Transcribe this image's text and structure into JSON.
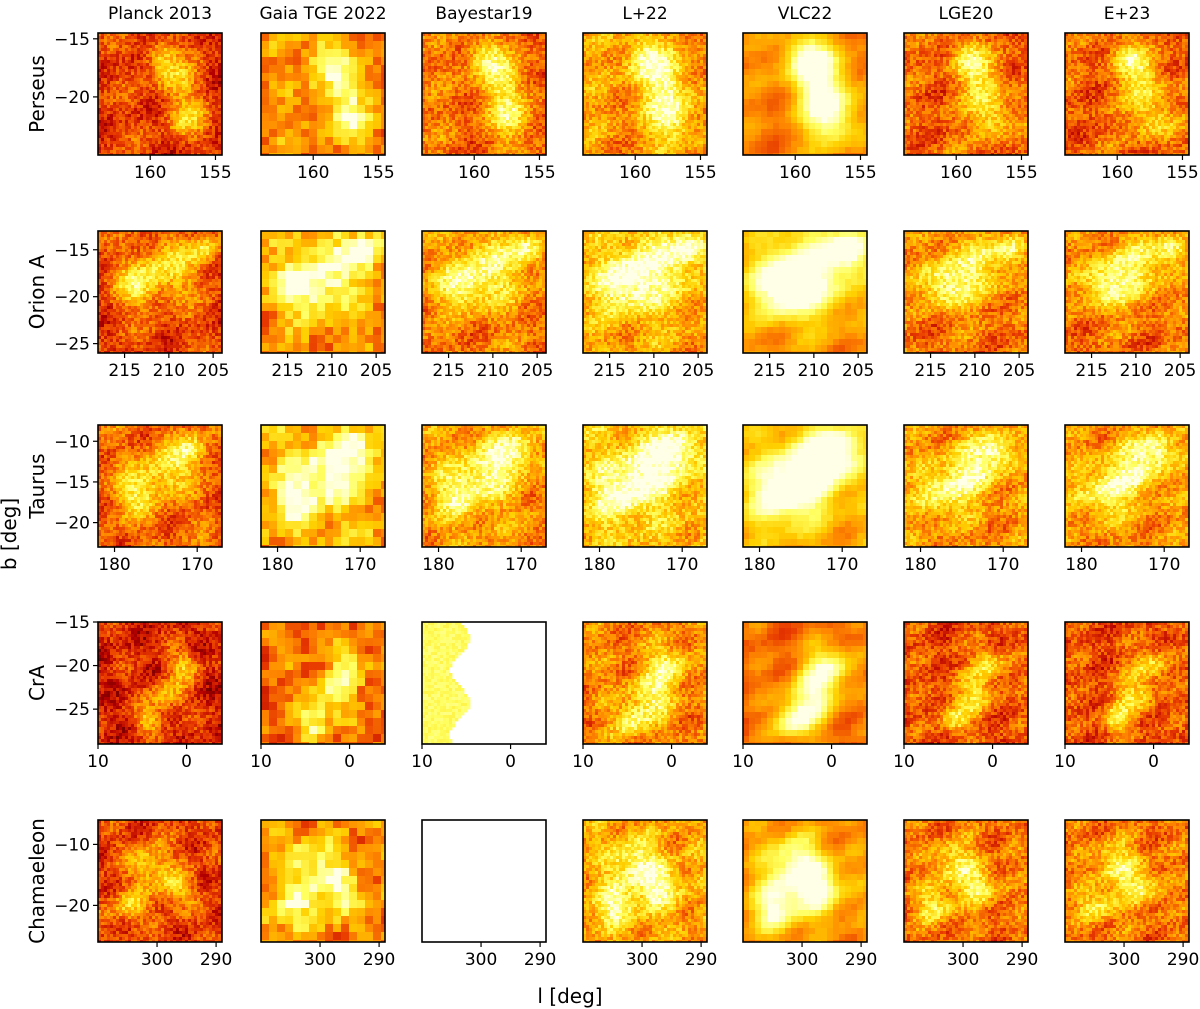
{
  "figure": {
    "xlabel": "l [deg]",
    "ylabel": "b [deg]",
    "colormap": [
      "#000000",
      "#5a0000",
      "#b40000",
      "#e83a00",
      "#ff8a00",
      "#ffd000",
      "#ffff60",
      "#ffffe8"
    ]
  },
  "chart_data": {
    "type": "heatmap",
    "columns": [
      "Planck 2013",
      "Gaia TGE 2022",
      "Bayestar19",
      "L+22",
      "VLC22",
      "LGE20",
      "E+23"
    ],
    "rows": [
      {
        "name": "Perseus",
        "xlim": [
          164,
          154.5
        ],
        "xticks": [
          160,
          155
        ],
        "xtick_labels": [
          "160",
          "155"
        ],
        "ylim": [
          -25,
          -14.5
        ],
        "yticks": [
          -15,
          -20
        ],
        "ytick_labels": [
          "−15",
          "−20"
        ]
      },
      {
        "name": "Orion A",
        "xlim": [
          218,
          204
        ],
        "xticks": [
          215,
          210,
          205
        ],
        "xtick_labels": [
          "215",
          "210",
          "205"
        ],
        "ylim": [
          -26,
          -13
        ],
        "yticks": [
          -15,
          -20,
          -25
        ],
        "ytick_labels": [
          "−15",
          "−20",
          "−25"
        ]
      },
      {
        "name": "Taurus",
        "xlim": [
          182,
          167
        ],
        "xticks": [
          180,
          170
        ],
        "xtick_labels": [
          "180",
          "170"
        ],
        "ylim": [
          -23,
          -8
        ],
        "yticks": [
          -10,
          -15,
          -20
        ],
        "ytick_labels": [
          "−10",
          "−15",
          "−20"
        ]
      },
      {
        "name": "CrA",
        "xlim": [
          10,
          -4
        ],
        "xticks": [
          10,
          0
        ],
        "xtick_labels": [
          "10",
          "0"
        ],
        "ylim": [
          -29,
          -15
        ],
        "yticks": [
          -15,
          -20,
          -25
        ],
        "ytick_labels": [
          "−15",
          "−20",
          "−25"
        ]
      },
      {
        "name": "Chamaeleon",
        "xlim": [
          310,
          289
        ],
        "xticks": [
          300,
          290
        ],
        "xtick_labels": [
          "300",
          "290"
        ],
        "ylim": [
          -26,
          -6
        ],
        "yticks": [
          -10,
          -20
        ],
        "ytick_labels": [
          "−10",
          "−20"
        ]
      }
    ],
    "empty_panels": [
      [
        4,
        2
      ]
    ],
    "partial_panels": [
      [
        3,
        2
      ]
    ]
  }
}
